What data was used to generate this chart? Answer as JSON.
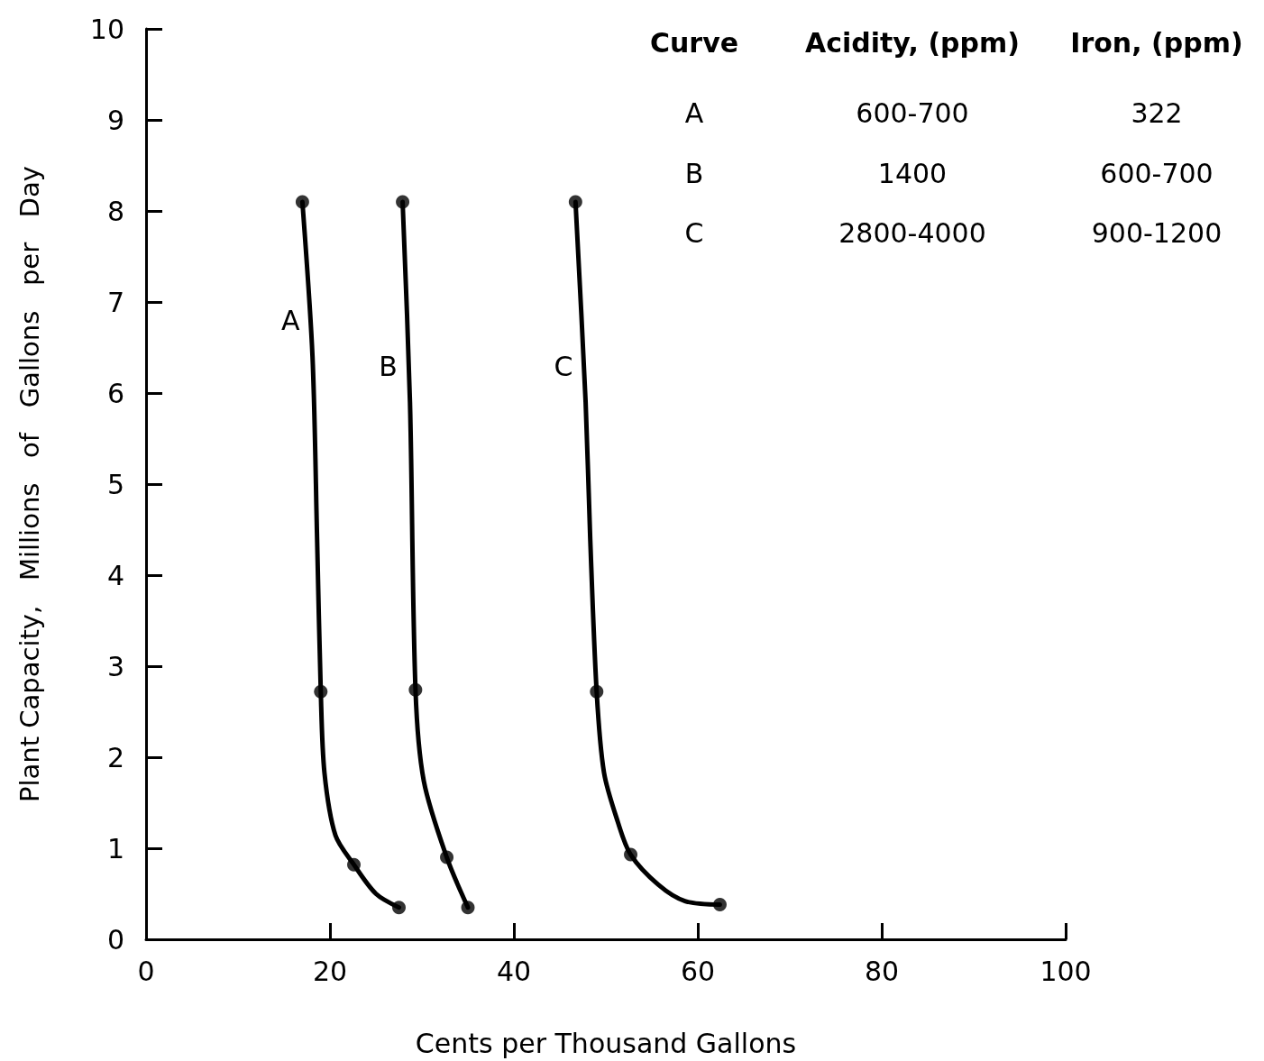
{
  "chart_data": {
    "type": "line",
    "xlabel": "Cents per Thousand Gallons",
    "ylabel": "Plant Capacity,   Millions   of   Gallons   per   Day",
    "xlim": [
      0,
      100
    ],
    "xticks": [
      0,
      20,
      40,
      60,
      80,
      100
    ],
    "ylim": [
      0,
      10
    ],
    "yticks": [
      0,
      1,
      2,
      3,
      4,
      5,
      6,
      7,
      8,
      9,
      10
    ],
    "grid": false,
    "series": [
      {
        "name": "A",
        "marker": "none",
        "color": "#000000",
        "x": [
          17.0,
          18.1,
          18.6,
          19.0,
          19.4,
          20.6,
          22.6,
          25.0,
          27.5
        ],
        "values": [
          8.1,
          6.4,
          4.4,
          2.72,
          1.83,
          1.14,
          0.82,
          0.5,
          0.35
        ]
      },
      {
        "name": "B",
        "marker": "none",
        "color": "#000000",
        "x": [
          27.9,
          28.7,
          29.3,
          30.2,
          32.7,
          35.0
        ],
        "values": [
          8.1,
          5.9,
          2.74,
          1.74,
          0.9,
          0.35
        ]
      },
      {
        "name": "C",
        "marker": "none",
        "color": "#000000",
        "x": [
          46.7,
          47.8,
          48.3,
          49.0,
          49.8,
          51.3,
          52.7,
          55.7,
          58.6,
          62.4
        ],
        "values": [
          8.1,
          5.9,
          4.4,
          2.72,
          1.83,
          1.29,
          0.93,
          0.6,
          0.42,
          0.38
        ]
      },
      {
        "type": "scatter",
        "marker": "circle",
        "color": "#000000",
        "x": [
          17.0,
          19.0,
          22.6,
          27.5,
          27.9,
          29.3,
          32.7,
          35.0,
          46.7,
          49.0,
          52.7,
          62.4
        ],
        "values": [
          8.1,
          2.72,
          0.82,
          0.35,
          8.1,
          2.74,
          0.9,
          0.35,
          8.1,
          2.72,
          0.93,
          0.38
        ]
      }
    ],
    "annotations": [
      "Curve",
      "Acidity, (ppm)",
      "Iron, (ppm)",
      "A",
      "600-700",
      "322",
      "B",
      "1400",
      "600-700",
      "C",
      "2800-4000",
      "900-1200"
    ]
  }
}
